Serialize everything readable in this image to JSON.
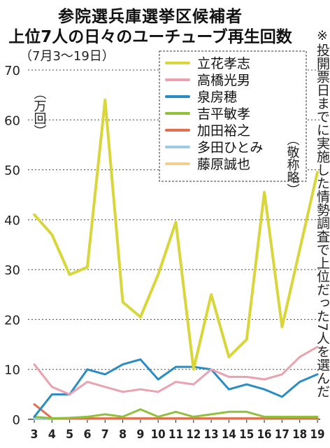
{
  "title_line1": "参院選兵庫選挙区候補者",
  "title_line2": "上位7人の日々のユーチューブ再生回数",
  "subtitle": "（7月3～19日）",
  "footnote": "※投開票日までに実施した情勢調査で上位だった7人を選んだ",
  "unit_label": "（万回）",
  "honorific_note": "（敬称略）",
  "chart_data": {
    "type": "line",
    "x": [
      3,
      4,
      5,
      6,
      7,
      8,
      9,
      10,
      11,
      12,
      13,
      14,
      15,
      16,
      17,
      18,
      19
    ],
    "ylim": [
      0,
      70
    ],
    "yticks": [
      0,
      10,
      20,
      30,
      40,
      50,
      60,
      70
    ],
    "grid": true,
    "legend_position": "top-right",
    "series": [
      {
        "name": "立花孝志",
        "color": "#d8d63a",
        "values": [
          41,
          37,
          29,
          30.5,
          64,
          23.5,
          20.5,
          29,
          39.5,
          10,
          25,
          12.5,
          16,
          45.5,
          18.5,
          34,
          49.5
        ]
      },
      {
        "name": "高橋光男",
        "color": "#eaa2b0",
        "values": [
          11,
          6.5,
          5,
          7.5,
          6.5,
          5.5,
          6,
          5.5,
          7.5,
          7,
          10,
          8.5,
          8.5,
          8,
          9,
          12.5,
          14.5
        ]
      },
      {
        "name": "泉房穂",
        "color": "#2a8cc4",
        "values": [
          0.5,
          5,
          5,
          10,
          9,
          11,
          12,
          8,
          10.5,
          10.5,
          10,
          6,
          7,
          6,
          4.5,
          7.5,
          9
        ]
      },
      {
        "name": "吉平敏孝",
        "color": "#8fc23a",
        "values": [
          0.5,
          0.2,
          0.3,
          0.5,
          1,
          0.5,
          2,
          0.5,
          1.5,
          0.5,
          1,
          1.5,
          1.5,
          0.5,
          0.5,
          0.5,
          0.5
        ]
      },
      {
        "name": "加田裕之",
        "color": "#e07050",
        "values": [
          3,
          0.2,
          0.2,
          0.2,
          0.2,
          0.2,
          0.2,
          0.2,
          0.2,
          0.2,
          0.2,
          0.2,
          0.2,
          0.2,
          0.2,
          0.2,
          0.2
        ]
      },
      {
        "name": "多田ひとみ",
        "color": "#9ccbe8",
        "values": [
          0.1,
          0.1,
          0.1,
          0.1,
          0.1,
          0.1,
          0.1,
          0.1,
          0.1,
          0.1,
          0.1,
          0.1,
          0.1,
          0.1,
          0.1,
          0.1,
          0.1
        ]
      },
      {
        "name": "藤原誠也",
        "color": "#f2cf90",
        "values": [
          0.1,
          0.1,
          0.1,
          0.1,
          0.1,
          0.1,
          0.1,
          0.1,
          0.1,
          0.1,
          0.1,
          0.1,
          0.1,
          0.1,
          0.1,
          0.1,
          0.1
        ]
      }
    ]
  }
}
